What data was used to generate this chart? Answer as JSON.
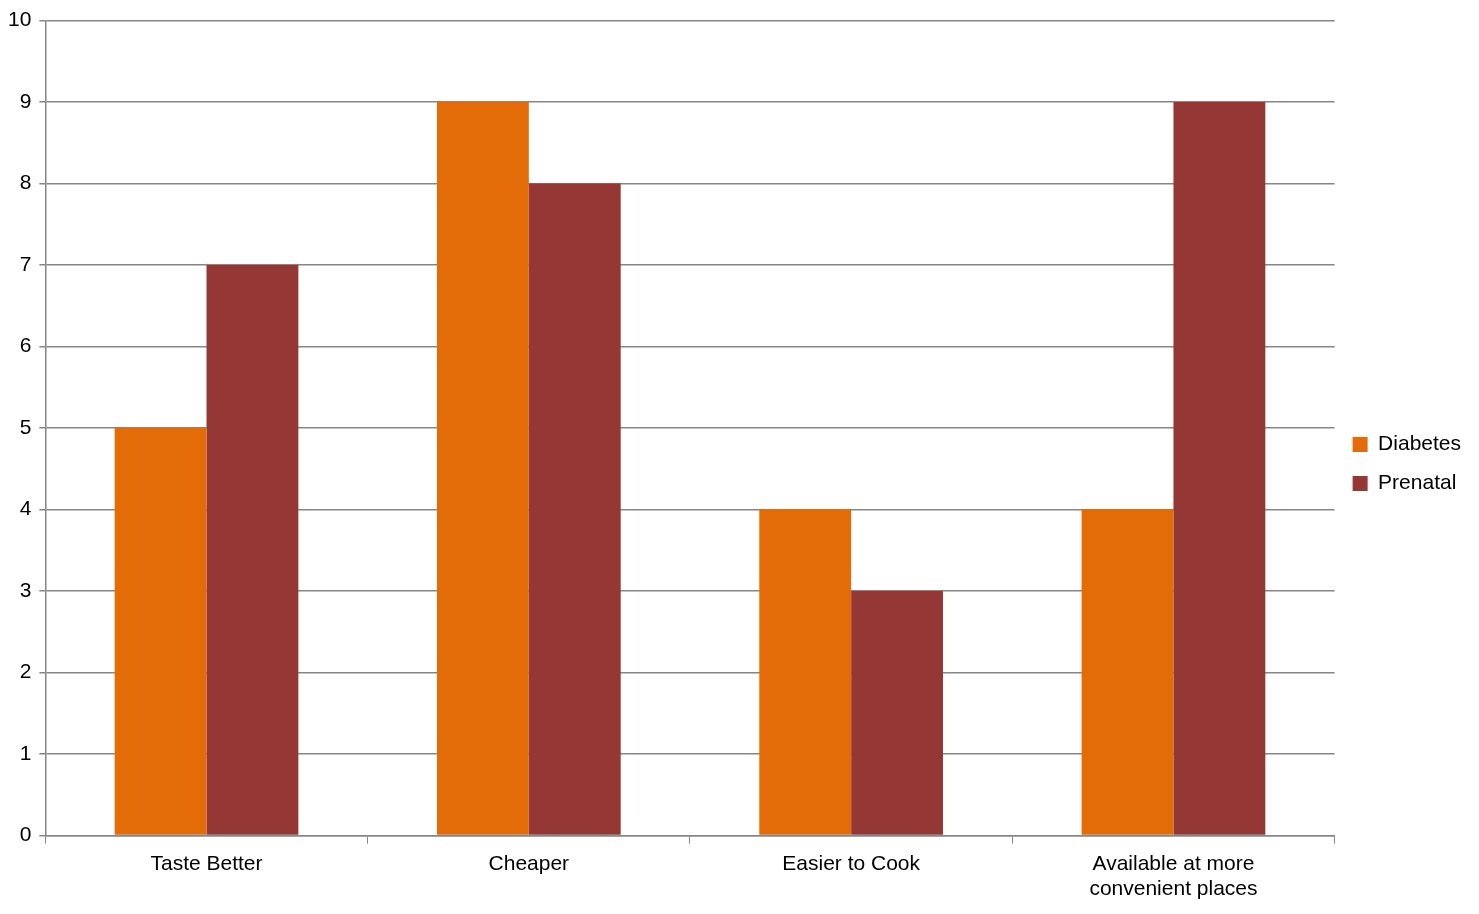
{
  "chart_data": {
    "type": "bar",
    "categories": [
      "Taste Better",
      "Cheaper",
      "Easier to Cook",
      "Available at more convenient places"
    ],
    "series": [
      {
        "name": "Diabetes",
        "color": "#e36c09",
        "values": [
          5,
          9,
          4,
          4
        ]
      },
      {
        "name": "Prenatal",
        "color": "#953735",
        "values": [
          7,
          8,
          3,
          9
        ]
      }
    ],
    "ylim": [
      0,
      10
    ],
    "yticks": [
      0,
      1,
      2,
      3,
      4,
      5,
      6,
      7,
      8,
      9,
      10
    ],
    "grid": "y",
    "legend": "right"
  }
}
